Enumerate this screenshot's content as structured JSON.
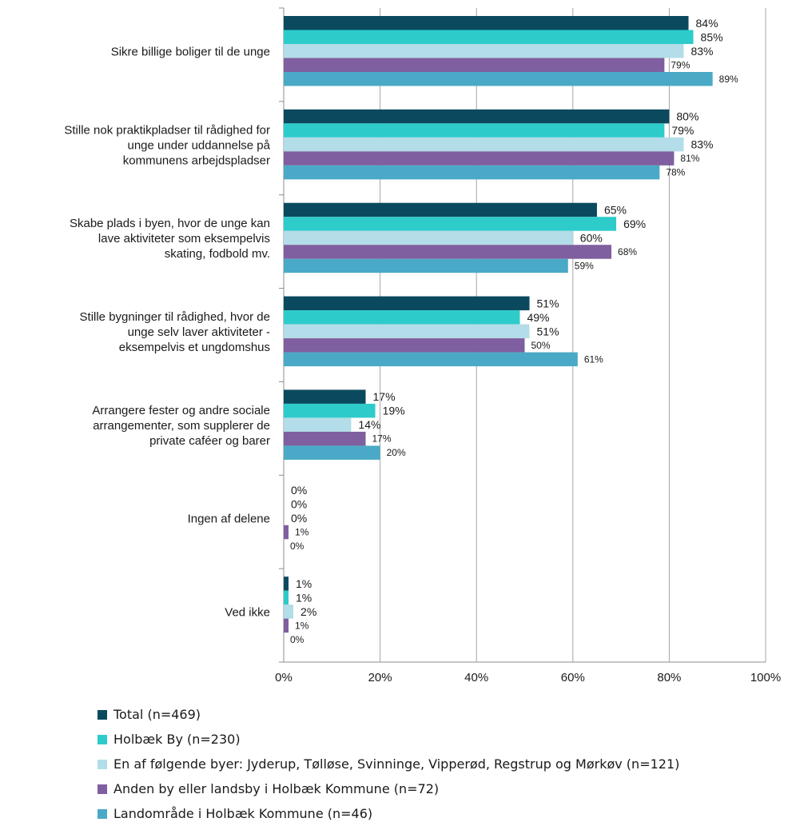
{
  "chart_data": {
    "type": "bar",
    "orientation": "horizontal",
    "categories": [
      [
        "Sikre billige boliger til de unge"
      ],
      [
        "Stille nok praktikpladser til rådighed for",
        "unge under uddannelse på",
        "kommunens arbejdspladser"
      ],
      [
        "Skabe plads i byen, hvor de unge kan",
        "lave aktiviteter som eksempelvis",
        "skating, fodbold mv."
      ],
      [
        "Stille bygninger til rådighed, hvor de",
        "unge selv laver aktiviteter -",
        "eksempelvis et ungdomshus"
      ],
      [
        "Arrangere fester og andre sociale",
        "arrangementer, som supplerer de",
        "private caféer og barer"
      ],
      [
        "Ingen af delene"
      ],
      [
        "Ved ikke"
      ]
    ],
    "series": [
      {
        "name": "Total (n=469)",
        "color": "#0b4a5e",
        "values": [
          84,
          80,
          65,
          51,
          17,
          0,
          1
        ]
      },
      {
        "name": "Holbæk By (n=230)",
        "color": "#2ecbcb",
        "values": [
          85,
          79,
          69,
          49,
          19,
          0,
          1
        ]
      },
      {
        "name": "En af følgende byer: Jyderup, Tølløse, Svinninge, Vipperød, Regstrup og Mørkøv (n=121)",
        "color": "#b3dde8",
        "values": [
          83,
          83,
          60,
          51,
          14,
          0,
          2
        ]
      },
      {
        "name": "Anden by eller landsby i Holbæk Kommune (n=72)",
        "color": "#7f5f9f",
        "values": [
          79,
          81,
          68,
          50,
          17,
          1,
          1
        ]
      },
      {
        "name": "Landområde i Holbæk Kommune (n=46)",
        "color": "#4aa9c6",
        "values": [
          89,
          78,
          59,
          61,
          20,
          0,
          0
        ]
      }
    ],
    "value_labels": [
      [
        "84%",
        "80%",
        "65%",
        "51%",
        "17%",
        "0%",
        "1%"
      ],
      [
        "85%",
        "79%",
        "69%",
        "49%",
        "19%",
        "0%",
        "1%"
      ],
      [
        "83%",
        "83%",
        "60%",
        "51%",
        "14%",
        "0%",
        "2%"
      ],
      [
        "79%",
        "81%",
        "68%",
        "50%",
        "17%",
        "1%",
        "1%"
      ],
      [
        "89%",
        "78%",
        "59%",
        "61%",
        "20%",
        "0%",
        "0%"
      ]
    ],
    "x_ticks": [
      "0%",
      "20%",
      "40%",
      "60%",
      "80%",
      "100%"
    ],
    "xlim": [
      0,
      100
    ],
    "grid": true,
    "legend_position": "bottom-left"
  }
}
